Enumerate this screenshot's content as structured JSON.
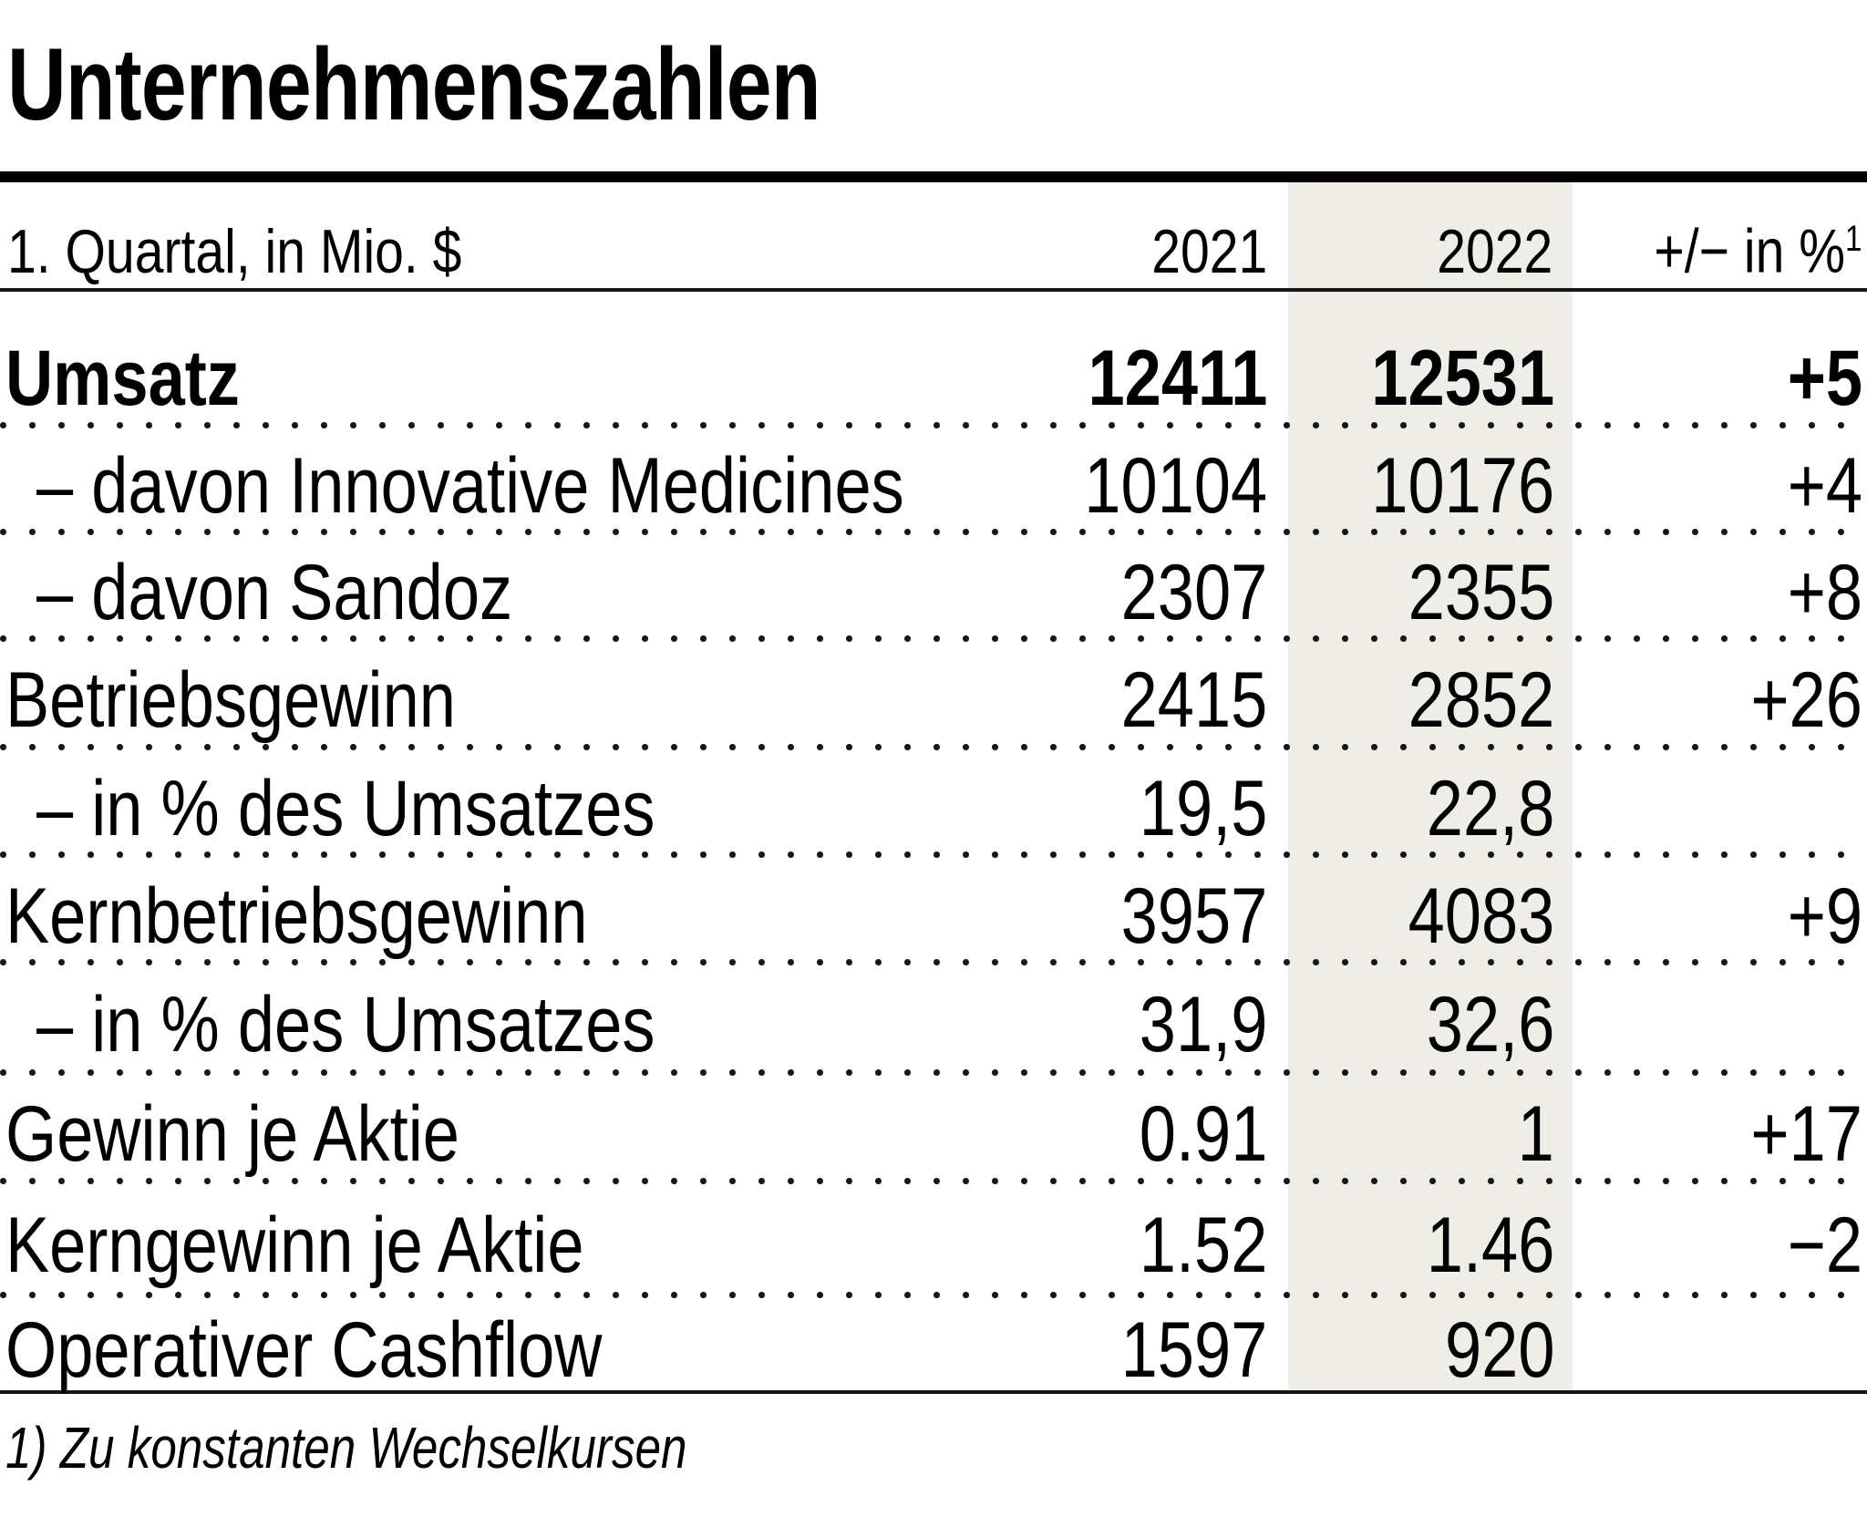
{
  "title": "Unternehmenszahlen",
  "header": {
    "label": "1. Quartal, in Mio. $",
    "col_2021": "2021",
    "col_2022": "2022",
    "col_change": "+/− in %",
    "col_change_sup": "1"
  },
  "rows": [
    {
      "label": "Umsatz",
      "v2021": "12411",
      "v2022": "12531",
      "change": "+5"
    },
    {
      "label": "– davon Innovative Medicines",
      "v2021": "10104",
      "v2022": "10176",
      "change": "+4"
    },
    {
      "label": "– davon Sandoz",
      "v2021": "2307",
      "v2022": "2355",
      "change": "+8"
    },
    {
      "label": "Betriebsgewinn",
      "v2021": "2415",
      "v2022": "2852",
      "change": "+26"
    },
    {
      "label": "– in % des Umsatzes",
      "v2021": "19,5",
      "v2022": "22,8",
      "change": ""
    },
    {
      "label": "Kernbetriebsgewinn",
      "v2021": "3957",
      "v2022": "4083",
      "change": "+9"
    },
    {
      "label": "– in % des Umsatzes",
      "v2021": "31,9",
      "v2022": "32,6",
      "change": ""
    },
    {
      "label": "Gewinn je Aktie",
      "v2021": "0.91",
      "v2022": "1",
      "change": "+17"
    },
    {
      "label": "Kerngewinn je Aktie",
      "v2021": "1.52",
      "v2022": "1.46",
      "change": "−2"
    },
    {
      "label": "Operativer Cashflow",
      "v2021": "1597",
      "v2022": "920",
      "change": ""
    }
  ],
  "footnote": "1) Zu konstanten Wechselkursen",
  "colors": {
    "stripe": "#EEEDE7",
    "text": "#000000",
    "rule": "#161616"
  }
}
